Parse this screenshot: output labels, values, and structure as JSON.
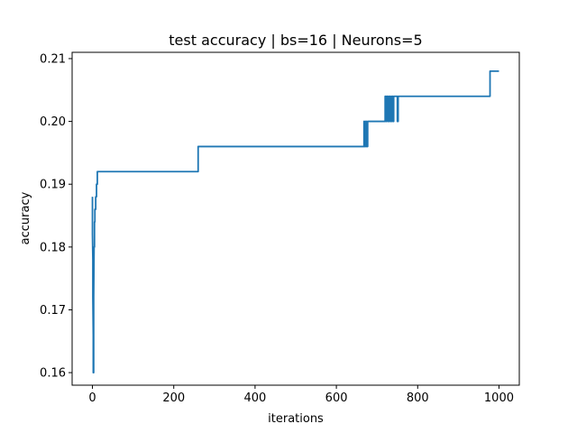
{
  "chart_data": {
    "type": "line",
    "title": "test accuracy | bs=16 | Neurons=5",
    "xlabel": "iterations",
    "ylabel": "accuracy",
    "xlim": [
      -50,
      1050
    ],
    "ylim": [
      0.158,
      0.211
    ],
    "xticks": [
      0,
      200,
      400,
      600,
      800,
      1000
    ],
    "xtick_labels": [
      "0",
      "200",
      "400",
      "600",
      "800",
      "1000"
    ],
    "yticks": [
      0.16,
      0.17,
      0.18,
      0.19,
      0.2,
      0.21
    ],
    "ytick_labels": [
      "0.16",
      "0.17",
      "0.18",
      "0.19",
      "0.20",
      "0.21"
    ],
    "grid": false,
    "line_color": "#1f77b4",
    "series": [
      {
        "x": [
          0,
          0,
          0,
          1,
          1,
          2,
          2,
          3,
          3,
          4,
          5,
          5,
          6,
          6,
          8,
          8,
          10,
          10,
          12,
          12,
          260,
          260,
          668,
          668,
          669,
          669,
          672,
          672,
          674,
          674,
          677,
          677,
          720,
          720,
          722,
          722,
          724,
          724,
          727,
          727,
          730,
          730,
          733,
          733,
          736,
          736,
          739,
          739,
          741,
          741,
          750,
          750,
          752,
          752,
          978,
          978,
          1000
        ],
        "y": [
          0.188,
          0.185,
          0.182,
          0.178,
          0.172,
          0.166,
          0.16,
          0.16,
          0.172,
          0.18,
          0.18,
          0.184,
          0.184,
          0.186,
          0.186,
          0.188,
          0.188,
          0.19,
          0.19,
          0.192,
          0.192,
          0.196,
          0.196,
          0.2,
          0.2,
          0.196,
          0.196,
          0.2,
          0.2,
          0.196,
          0.196,
          0.2,
          0.2,
          0.204,
          0.204,
          0.2,
          0.2,
          0.204,
          0.204,
          0.2,
          0.2,
          0.204,
          0.204,
          0.2,
          0.2,
          0.204,
          0.204,
          0.2,
          0.2,
          0.204,
          0.204,
          0.2,
          0.2,
          0.204,
          0.204,
          0.208,
          0.208
        ]
      }
    ]
  }
}
